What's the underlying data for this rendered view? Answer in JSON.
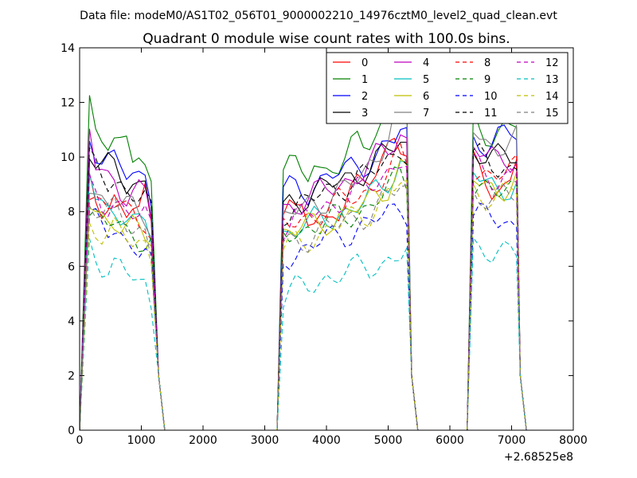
{
  "header": {
    "suptitle": "Data file: modeM0/AS1T02_056T01_9000002210_14976cztM0_level2_quad_clean.evt"
  },
  "chart_data": {
    "type": "line",
    "title": "Quadrant 0 module wise count rates with 100.0s bins.",
    "xlabel": "",
    "ylabel": "",
    "x_offset_label": "+2.68525e8",
    "xlim": [
      0,
      8000
    ],
    "ylim": [
      0,
      14
    ],
    "x_ticks": [
      0,
      1000,
      2000,
      3000,
      4000,
      5000,
      6000,
      7000,
      8000
    ],
    "y_ticks": [
      0,
      2,
      4,
      6,
      8,
      10,
      12,
      14
    ],
    "legend_position": "top-right",
    "legend_columns": 4,
    "series": [
      {
        "name": "0",
        "color": "#ff0000",
        "dash": false,
        "gti": [
          [
            160,
            1200
          ],
          [
            3300,
            5300
          ],
          [
            6380,
            7060
          ]
        ],
        "base": [
          9.0,
          8.5,
          8.3,
          8.4,
          8.5,
          8.0,
          7.8,
          8.2,
          8.0,
          8.6,
          7.5,
          8.3,
          8.3,
          7.7,
          7.9,
          7.6,
          7.8,
          7.9,
          7.7,
          8.0,
          8.1,
          8.4,
          8.6,
          8.8,
          9.0,
          9.3,
          9.6,
          10.0,
          10.5,
          10.9,
          10.4,
          9.9,
          9.7,
          9.5,
          9.3,
          9.0,
          8.9,
          8.8,
          9.0,
          10.0,
          10.6
        ]
      },
      {
        "name": "1",
        "color": "#008000",
        "dash": false,
        "gti": [
          [
            160,
            1200
          ],
          [
            3300,
            5300
          ],
          [
            6380,
            7060
          ]
        ],
        "base": [
          12.2,
          11.5,
          11.1,
          10.3,
          10.3,
          10.4,
          10.8,
          9.9,
          9.8,
          9.5,
          9.3,
          9.6,
          9.6,
          9.5,
          9.4,
          9.5,
          10.0,
          9.6,
          9.5,
          9.6,
          9.6,
          9.8,
          10.2,
          10.6,
          10.6,
          10.8,
          11.0,
          11.2,
          11.5,
          11.9,
          12.1,
          11.8,
          11.5,
          11.2,
          11.0,
          10.8,
          10.8,
          10.9,
          11.0,
          11.2,
          11.3
        ]
      },
      {
        "name": "2",
        "color": "#0000ff",
        "dash": false,
        "gti": [
          [
            160,
            1200
          ],
          [
            3300,
            5300
          ],
          [
            6380,
            7060
          ]
        ],
        "base": [
          10.8,
          10.3,
          10.0,
          9.8,
          9.7,
          9.5,
          9.4,
          9.6,
          9.4,
          9.3,
          8.5,
          8.7,
          8.8,
          8.9,
          8.9,
          8.8,
          9.0,
          9.1,
          9.2,
          9.3,
          9.4,
          9.5,
          9.6,
          9.7,
          9.8,
          9.9,
          10.0,
          10.2,
          10.4,
          10.6,
          11.0,
          10.8,
          10.7,
          10.6,
          10.5,
          10.5,
          10.6,
          10.7,
          10.8,
          10.9,
          11.0
        ]
      },
      {
        "name": "3",
        "color": "#000000",
        "dash": false,
        "gti": [
          [
            160,
            1200
          ],
          [
            3300,
            5300
          ],
          [
            6380,
            7060
          ]
        ],
        "base": [
          10.2,
          9.9,
          9.7,
          9.6,
          9.5,
          9.3,
          9.1,
          9.2,
          9.0,
          9.1,
          8.0,
          8.1,
          8.3,
          8.4,
          8.5,
          8.6,
          8.7,
          8.8,
          8.9,
          9.0,
          9.1,
          9.2,
          9.3,
          9.4,
          9.5,
          9.6,
          9.8,
          10.0,
          10.2,
          10.4,
          10.6,
          10.4,
          10.2,
          10.1,
          10.0,
          9.9,
          9.9,
          10.0,
          10.1,
          10.2,
          10.3
        ]
      },
      {
        "name": "4",
        "color": "#bf00bf",
        "dash": false,
        "gti": [
          [
            160,
            1200
          ],
          [
            3300,
            5300
          ],
          [
            6380,
            7060
          ]
        ],
        "base": [
          11.2,
          9.6,
          9.2,
          9.0,
          9.1,
          8.9,
          8.7,
          8.8,
          8.9,
          8.8,
          7.9,
          8.1,
          8.2,
          8.3,
          8.4,
          8.5,
          8.6,
          8.7,
          8.8,
          8.9,
          9.0,
          9.1,
          9.2,
          9.4,
          9.5,
          9.7,
          9.9,
          10.1,
          10.3,
          10.6,
          10.9,
          10.6,
          10.4,
          10.2,
          10.0,
          9.9,
          9.8,
          9.9,
          10.0,
          10.1,
          10.2
        ]
      },
      {
        "name": "5",
        "color": "#00bfbf",
        "dash": false,
        "gti": [
          [
            160,
            1200
          ],
          [
            3300,
            5300
          ],
          [
            6380,
            7060
          ]
        ],
        "base": [
          9.5,
          8.4,
          8.1,
          8.0,
          8.2,
          8.1,
          7.9,
          7.6,
          7.5,
          7.6,
          7.0,
          7.2,
          7.3,
          7.4,
          7.5,
          7.5,
          7.6,
          7.7,
          7.8,
          7.8,
          7.9,
          8.0,
          8.1,
          8.2,
          8.3,
          8.5,
          8.7,
          8.9,
          9.2,
          9.5,
          9.8,
          9.6,
          9.4,
          9.2,
          9.0,
          8.9,
          8.8,
          8.9,
          9.0,
          9.1,
          9.2
        ]
      },
      {
        "name": "6",
        "color": "#bfbf00",
        "dash": false,
        "gti": [
          [
            160,
            1200
          ],
          [
            3300,
            5300
          ],
          [
            6380,
            7060
          ]
        ],
        "base": [
          8.3,
          8.0,
          7.8,
          7.7,
          7.8,
          7.6,
          7.4,
          7.3,
          7.2,
          7.1,
          7.0,
          7.2,
          7.3,
          7.3,
          7.4,
          7.5,
          7.5,
          7.6,
          7.7,
          7.7,
          7.8,
          7.9,
          8.0,
          8.1,
          8.2,
          8.4,
          8.6,
          8.8,
          9.0,
          9.3,
          9.6,
          9.4,
          9.2,
          9.1,
          9.0,
          8.9,
          8.8,
          8.9,
          9.0,
          9.1,
          9.2
        ]
      },
      {
        "name": "7",
        "color": "#808080",
        "dash": false,
        "gti": [
          [
            160,
            1200
          ],
          [
            3300,
            5300
          ],
          [
            6380,
            7060
          ]
        ],
        "base": [
          9.0,
          8.7,
          8.5,
          8.4,
          8.5,
          8.3,
          8.1,
          8.0,
          7.9,
          7.9,
          7.4,
          7.7,
          7.9,
          8.0,
          8.1,
          8.2,
          8.3,
          8.4,
          8.5,
          8.6,
          8.7,
          8.8,
          9.0,
          9.2,
          9.4,
          9.7,
          10.0,
          10.4,
          10.9,
          11.5,
          12.0,
          11.6,
          11.2,
          10.9,
          10.6,
          10.4,
          10.3,
          10.4,
          10.5,
          10.6,
          10.7
        ]
      },
      {
        "name": "8",
        "color": "#ff0000",
        "dash": true,
        "gti": [
          [
            160,
            1200
          ],
          [
            3300,
            5300
          ],
          [
            6380,
            7060
          ]
        ],
        "base": [
          8.8,
          8.5,
          8.3,
          8.2,
          8.3,
          8.1,
          7.9,
          7.9,
          7.8,
          7.8,
          7.2,
          7.4,
          7.5,
          7.6,
          7.7,
          7.8,
          7.9,
          8.0,
          8.1,
          8.2,
          8.3,
          8.4,
          8.5,
          8.6,
          8.7,
          8.8,
          9.0,
          9.2,
          9.4,
          9.7,
          10.0,
          9.8,
          9.6,
          9.5,
          9.4,
          9.3,
          9.3,
          9.4,
          9.5,
          9.6,
          9.7
        ]
      },
      {
        "name": "9",
        "color": "#008000",
        "dash": true,
        "gti": [
          [
            160,
            1200
          ],
          [
            3300,
            5300
          ],
          [
            6380,
            7060
          ]
        ],
        "base": [
          8.0,
          7.8,
          7.6,
          7.5,
          7.6,
          7.4,
          7.2,
          7.2,
          7.1,
          7.0,
          6.9,
          7.1,
          7.2,
          7.3,
          7.3,
          7.4,
          7.5,
          7.5,
          7.6,
          7.7,
          7.8,
          7.8,
          7.9,
          8.0,
          8.1,
          8.2,
          8.4,
          8.6,
          8.8,
          9.1,
          9.4,
          9.2,
          9.0,
          8.9,
          8.8,
          8.7,
          8.6,
          8.7,
          8.8,
          8.9,
          9.0
        ]
      },
      {
        "name": "10",
        "color": "#0000ff",
        "dash": true,
        "gti": [
          [
            160,
            1200
          ],
          [
            3300,
            5300
          ],
          [
            6380,
            7060
          ]
        ],
        "base": [
          7.8,
          7.6,
          7.4,
          7.2,
          7.3,
          7.1,
          6.9,
          6.9,
          6.8,
          6.7,
          6.0,
          6.3,
          6.4,
          6.5,
          6.6,
          6.7,
          6.8,
          6.9,
          7.0,
          7.0,
          7.1,
          7.2,
          7.3,
          7.4,
          7.5,
          7.6,
          7.7,
          7.8,
          7.9,
          8.0,
          8.2,
          8.1,
          8.0,
          7.9,
          7.8,
          7.7,
          7.6,
          7.6,
          7.5,
          7.5,
          7.5
        ]
      },
      {
        "name": "11",
        "color": "#000000",
        "dash": true,
        "gti": [
          [
            160,
            1200
          ],
          [
            3300,
            5300
          ],
          [
            6380,
            7060
          ]
        ],
        "base": [
          9.8,
          9.5,
          9.3,
          9.1,
          9.2,
          9.0,
          8.8,
          8.7,
          8.6,
          8.5,
          7.8,
          8.0,
          8.1,
          8.2,
          8.3,
          8.4,
          8.5,
          8.6,
          8.7,
          8.8,
          8.9,
          9.0,
          9.1,
          9.2,
          9.3,
          9.4,
          9.5,
          9.7,
          9.9,
          10.1,
          10.4,
          10.2,
          10.0,
          9.9,
          9.8,
          9.7,
          9.6,
          9.6,
          9.6,
          9.7,
          9.8
        ]
      },
      {
        "name": "12",
        "color": "#bf00bf",
        "dash": true,
        "gti": [
          [
            160,
            1200
          ],
          [
            3300,
            5300
          ],
          [
            6380,
            7060
          ]
        ],
        "base": [
          8.8,
          8.6,
          8.4,
          8.3,
          8.4,
          8.2,
          8.0,
          7.9,
          7.8,
          7.8,
          7.3,
          7.5,
          7.6,
          7.7,
          7.8,
          7.9,
          8.0,
          8.1,
          8.2,
          8.3,
          8.4,
          8.5,
          8.6,
          8.7,
          8.8,
          8.9,
          9.1,
          9.3,
          9.5,
          9.7,
          10.0,
          9.8,
          9.6,
          9.5,
          9.4,
          9.3,
          9.2,
          9.3,
          9.4,
          9.5,
          9.6
        ]
      },
      {
        "name": "13",
        "color": "#00bfbf",
        "dash": true,
        "gti": [
          [
            160,
            1200
          ],
          [
            3300,
            5300
          ],
          [
            6380,
            7060
          ]
        ],
        "base": [
          6.7,
          6.4,
          6.2,
          6.0,
          6.1,
          5.9,
          5.7,
          5.6,
          5.4,
          5.2,
          4.4,
          4.8,
          5.0,
          5.1,
          5.2,
          5.3,
          5.4,
          5.5,
          5.6,
          5.6,
          5.7,
          5.8,
          5.8,
          5.9,
          6.0,
          6.0,
          6.1,
          6.1,
          6.2,
          6.3,
          6.4,
          6.5,
          6.6,
          6.6,
          6.7,
          6.7,
          6.7,
          6.6,
          6.5,
          6.4,
          6.3
        ]
      },
      {
        "name": "14",
        "color": "#bfbf00",
        "dash": true,
        "gti": [
          [
            160,
            1200
          ],
          [
            3300,
            5300
          ],
          [
            6380,
            7060
          ]
        ],
        "base": [
          7.6,
          7.5,
          7.3,
          7.2,
          7.3,
          7.1,
          7.0,
          6.9,
          6.9,
          6.8,
          6.3,
          6.6,
          6.7,
          6.8,
          6.9,
          7.0,
          7.1,
          7.2,
          7.3,
          7.4,
          7.5,
          7.6,
          7.7,
          7.8,
          7.9,
          8.0,
          8.2,
          8.4,
          8.6,
          8.8,
          9.1,
          8.9,
          8.8,
          8.7,
          8.6,
          8.6,
          8.5,
          8.6,
          8.7,
          8.8,
          8.9
        ]
      },
      {
        "name": "15",
        "color": "#808080",
        "dash": true,
        "gti": [
          [
            160,
            1200
          ],
          [
            3300,
            5300
          ],
          [
            6380,
            7060
          ]
        ],
        "base": [
          8.4,
          8.2,
          8.0,
          7.9,
          8.0,
          7.8,
          7.6,
          7.5,
          7.4,
          7.3,
          6.5,
          6.7,
          6.8,
          6.9,
          7.0,
          7.1,
          7.2,
          7.3,
          7.4,
          7.5,
          7.5,
          7.6,
          7.7,
          7.8,
          7.9,
          8.0,
          8.1,
          8.3,
          8.5,
          8.7,
          9.0,
          8.8,
          8.7,
          8.6,
          8.5,
          8.4,
          8.4,
          8.5,
          8.6,
          8.7,
          8.8
        ]
      }
    ]
  }
}
